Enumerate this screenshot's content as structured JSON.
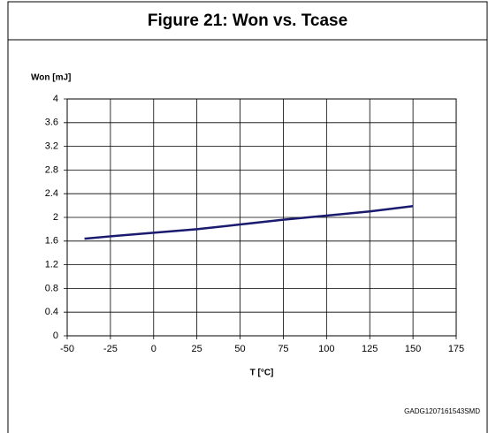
{
  "chart_data": {
    "type": "line",
    "title": "Figure 21: Won vs. Tcase",
    "y_label": "Won [mJ]",
    "x_label": "T [°C]",
    "annotation": "GADG1207161543SMD",
    "x": [
      -40,
      -25,
      0,
      25,
      50,
      75,
      100,
      125,
      150
    ],
    "values": [
      1.64,
      1.68,
      1.74,
      1.8,
      1.88,
      1.96,
      2.03,
      2.1,
      2.19
    ],
    "color": "#1a1a6e",
    "xlim": [
      -50,
      175
    ],
    "xticks": [
      -50,
      -25,
      0,
      25,
      50,
      75,
      100,
      125,
      150,
      175
    ],
    "ylim": [
      0,
      4
    ],
    "yticks": [
      0,
      0.4,
      0.8,
      1.2,
      1.6,
      2,
      2.4,
      2.8,
      3.2,
      3.6,
      4
    ],
    "grid": true
  }
}
